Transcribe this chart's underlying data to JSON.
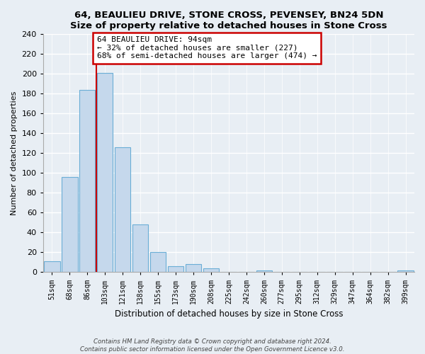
{
  "title": "64, BEAULIEU DRIVE, STONE CROSS, PEVENSEY, BN24 5DN",
  "subtitle": "Size of property relative to detached houses in Stone Cross",
  "xlabel": "Distribution of detached houses by size in Stone Cross",
  "ylabel": "Number of detached properties",
  "bar_labels": [
    "51sqm",
    "68sqm",
    "86sqm",
    "103sqm",
    "121sqm",
    "138sqm",
    "155sqm",
    "173sqm",
    "190sqm",
    "208sqm",
    "225sqm",
    "242sqm",
    "260sqm",
    "277sqm",
    "295sqm",
    "312sqm",
    "329sqm",
    "347sqm",
    "364sqm",
    "382sqm",
    "399sqm"
  ],
  "bar_values": [
    11,
    96,
    184,
    201,
    126,
    48,
    20,
    6,
    8,
    4,
    0,
    0,
    2,
    0,
    0,
    0,
    0,
    0,
    0,
    0,
    2
  ],
  "bar_color": "#c5d8ec",
  "bar_edge_color": "#6aaed6",
  "property_line_color": "#cc0000",
  "annotation_title": "64 BEAULIEU DRIVE: 94sqm",
  "annotation_line1": "← 32% of detached houses are smaller (227)",
  "annotation_line2": "68% of semi-detached houses are larger (474) →",
  "annotation_box_color": "#ffffff",
  "annotation_box_edge": "#cc0000",
  "ylim": [
    0,
    240
  ],
  "yticks": [
    0,
    20,
    40,
    60,
    80,
    100,
    120,
    140,
    160,
    180,
    200,
    220,
    240
  ],
  "footer1": "Contains HM Land Registry data © Crown copyright and database right 2024.",
  "footer2": "Contains public sector information licensed under the Open Government Licence v3.0.",
  "bg_color": "#e8eef4",
  "grid_color": "#ffffff",
  "plot_bg_color": "#e8eef4"
}
